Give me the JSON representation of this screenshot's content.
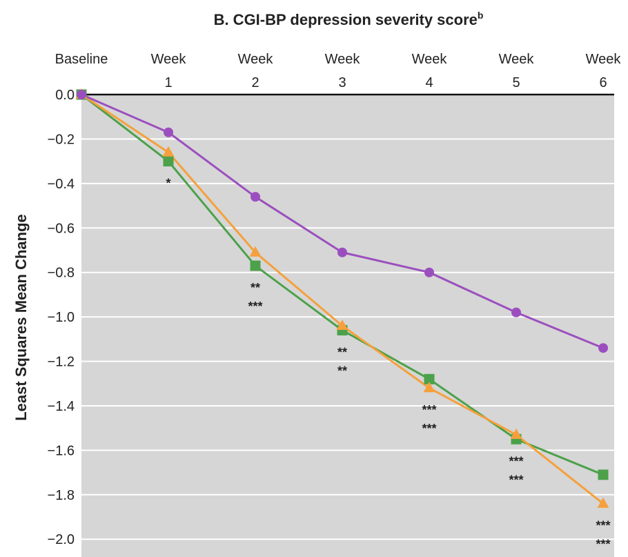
{
  "chart_data": {
    "type": "line",
    "title": "B. CGI-BP depression severity score",
    "title_superscript": "b",
    "y_label": "Least Squares Mean Change",
    "categories": [
      "Baseline",
      "Week 1",
      "Week 2",
      "Week 3",
      "Week 4",
      "Week 5",
      "Week 6"
    ],
    "series": [
      {
        "color": "#9b4fbf",
        "marker": "circle",
        "values": [
          0,
          -0.17,
          -0.46,
          -0.71,
          -0.8,
          -0.98,
          -1.14
        ]
      },
      {
        "color": "#f5a03c",
        "marker": "triangle",
        "values": [
          0,
          -0.26,
          -0.71,
          -1.04,
          -1.32,
          -1.53,
          -1.84
        ]
      },
      {
        "color": "#4ca14a",
        "marker": "square",
        "values": [
          0,
          -0.3,
          -0.77,
          -1.06,
          -1.28,
          -1.55,
          -1.71
        ]
      }
    ],
    "annotations": [
      null,
      [
        "*"
      ],
      [
        "**",
        "***"
      ],
      [
        "**",
        "**"
      ],
      [
        "***",
        "***"
      ],
      [
        "***",
        "***"
      ],
      [
        "***",
        "***"
      ]
    ],
    "ylim": [
      -2.08,
      0
    ],
    "yticks": [
      {
        "value": 0,
        "label": "0.0"
      },
      {
        "value": -0.2,
        "label": "−0.2"
      },
      {
        "value": -0.4,
        "label": "−0.4"
      },
      {
        "value": -0.6,
        "label": "−0.6"
      },
      {
        "value": -0.8,
        "label": "−0.8"
      },
      {
        "value": -1.0,
        "label": "−1.0"
      },
      {
        "value": -1.2,
        "label": "−1.2"
      },
      {
        "value": -1.4,
        "label": "−1.4"
      },
      {
        "value": -1.6,
        "label": "−1.6"
      },
      {
        "value": -1.8,
        "label": "−1.8"
      },
      {
        "value": -2.0,
        "label": "−2.0"
      }
    ],
    "grid": true,
    "background": "#d6d6d6"
  }
}
